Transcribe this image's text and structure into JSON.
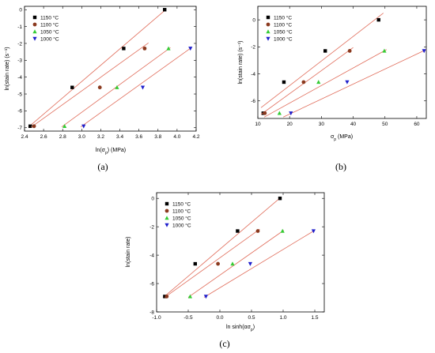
{
  "chart_data": [
    {
      "type": "scatter",
      "caption": "(a)",
      "xlabel": "ln(σp) (MPa)",
      "ylabel": "ln(stain rate) (s⁻¹)",
      "xlim": [
        2.4,
        4.2
      ],
      "ylim": [
        -7.2,
        0.2
      ],
      "xticks": [
        2.4,
        2.6,
        2.8,
        3.0,
        3.2,
        3.4,
        3.6,
        3.8,
        4.0,
        4.2
      ],
      "xtick_labels": [
        "2.4",
        "2.6",
        "2.8",
        "3.0",
        "3.2",
        "3.4",
        "3.6",
        "3.8",
        "4.0",
        "4.2"
      ],
      "yticks": [
        0,
        -1,
        -2,
        -3,
        -4,
        -5,
        -6,
        -7
      ],
      "ytick_labels": [
        "0",
        "-1",
        "-2",
        "-3",
        "-4",
        "-5",
        "-6",
        "-7"
      ],
      "legend_position": "top-left",
      "series": [
        {
          "name": "1150 °C",
          "marker": "square",
          "color": "#000000",
          "x": [
            2.46,
            2.9,
            3.44,
            3.87
          ],
          "y": [
            -6.91,
            -4.61,
            -2.3,
            0.0
          ],
          "fit_x": [
            2.44,
            3.88
          ],
          "fit_y": [
            -6.97,
            0.0
          ]
        },
        {
          "name": "1100 °C",
          "marker": "circle",
          "color": "#8b3a1f",
          "x": [
            2.5,
            3.19,
            3.66
          ],
          "y": [
            -6.91,
            -4.61,
            -2.3
          ],
          "fit_x": [
            2.47,
            3.7
          ],
          "fit_y": [
            -6.97,
            -1.97
          ]
        },
        {
          "name": "1050 °C",
          "marker": "triangle-up",
          "color": "#33cc33",
          "x": [
            2.82,
            3.37,
            3.91
          ],
          "y": [
            -6.91,
            -4.61,
            -2.3
          ],
          "fit_x": [
            2.79,
            3.93
          ],
          "fit_y": [
            -6.95,
            -2.25
          ]
        },
        {
          "name": "1000 °C",
          "marker": "triangle-down",
          "color": "#1f1fcc",
          "x": [
            3.02,
            3.64,
            4.14
          ],
          "y": [
            -6.91,
            -4.61,
            -2.3
          ],
          "fit_x": [
            2.99,
            4.15
          ],
          "fit_y": [
            -6.95,
            -2.25
          ]
        }
      ]
    },
    {
      "type": "scatter",
      "caption": "(b)",
      "xlabel": "σp (MPa)",
      "ylabel": "ln(stain rate) (s⁻¹)",
      "xlim": [
        10,
        63
      ],
      "ylim": [
        -7.3,
        1.0
      ],
      "xticks": [
        10,
        20,
        30,
        40,
        50,
        60
      ],
      "xtick_labels": [
        "10",
        "20",
        "30",
        "40",
        "50",
        "60"
      ],
      "yticks": [
        0,
        -2,
        -4,
        -6
      ],
      "ytick_labels": [
        "0",
        "-2",
        "-4",
        "-6"
      ],
      "legend_position": "top-left",
      "series": [
        {
          "name": "1150 °C",
          "marker": "square",
          "color": "#000000",
          "x": [
            11.7,
            18.2,
            31.2,
            48.0
          ],
          "y": [
            -6.91,
            -4.61,
            -2.3,
            0.0
          ],
          "fit_x": [
            11.0,
            49.5
          ],
          "fit_y": [
            -6.5,
            0.5
          ]
        },
        {
          "name": "1100 °C",
          "marker": "circle",
          "color": "#8b3a1f",
          "x": [
            12.2,
            24.4,
            38.9
          ],
          "y": [
            -6.91,
            -4.61,
            -2.3
          ],
          "fit_x": [
            11.0,
            40.0
          ],
          "fit_y": [
            -7.0,
            -2.05
          ]
        },
        {
          "name": "1050 °C",
          "marker": "triangle-up",
          "color": "#33cc33",
          "x": [
            16.8,
            29.1,
            49.8
          ],
          "y": [
            -6.91,
            -4.61,
            -2.3
          ],
          "fit_x": [
            12.0,
            50.5
          ],
          "fit_y": [
            -7.2,
            -2.2
          ]
        },
        {
          "name": "1000 °C",
          "marker": "triangle-down",
          "color": "#1f1fcc",
          "x": [
            20.4,
            38.1,
            62.3
          ],
          "y": [
            -6.91,
            -4.61,
            -2.3
          ],
          "fit_x": [
            18.0,
            63.0
          ],
          "fit_y": [
            -7.2,
            -2.2
          ]
        }
      ]
    },
    {
      "type": "scatter",
      "caption": "(c)",
      "xlabel": "ln sinh(ασp)",
      "ylabel": "ln(stain rate)",
      "xlim": [
        -1.0,
        1.65
      ],
      "ylim": [
        -8.0,
        0.4
      ],
      "xticks": [
        -1.0,
        -0.5,
        0.0,
        0.5,
        1.0,
        1.5
      ],
      "xtick_labels": [
        "-1.0",
        "-0.5",
        "0.0",
        "0.5",
        "1.0",
        "1.5"
      ],
      "yticks": [
        0,
        -2,
        -4,
        -6,
        -8
      ],
      "ytick_labels": [
        "0",
        "-2",
        "-4",
        "-6",
        "-8"
      ],
      "legend_position": "top-left",
      "series": [
        {
          "name": "1150 °C",
          "marker": "square",
          "color": "#000000",
          "x": [
            -0.87,
            -0.39,
            0.28,
            0.95
          ],
          "y": [
            -6.91,
            -4.61,
            -2.3,
            0.0
          ],
          "fit_x": [
            -0.9,
            0.97
          ],
          "fit_y": [
            -7.0,
            0.1
          ]
        },
        {
          "name": "1100 °C",
          "marker": "circle",
          "color": "#8b3a1f",
          "x": [
            -0.84,
            -0.03,
            0.6
          ],
          "y": [
            -6.91,
            -4.61,
            -2.3
          ],
          "fit_x": [
            -0.87,
            0.63
          ],
          "fit_y": [
            -6.97,
            -2.17
          ]
        },
        {
          "name": "1050 °C",
          "marker": "triangle-up",
          "color": "#33cc33",
          "x": [
            -0.47,
            0.2,
            0.99
          ],
          "y": [
            -6.91,
            -4.61,
            -2.3
          ],
          "fit_x": [
            -0.5,
            1.01
          ],
          "fit_y": [
            -6.97,
            -2.25
          ]
        },
        {
          "name": "1000 °C",
          "marker": "triangle-down",
          "color": "#1f1fcc",
          "x": [
            -0.22,
            0.48,
            1.48
          ],
          "y": [
            -6.91,
            -4.61,
            -2.3
          ],
          "fit_x": [
            -0.25,
            1.5
          ],
          "fit_y": [
            -6.97,
            -2.25
          ]
        }
      ]
    }
  ]
}
